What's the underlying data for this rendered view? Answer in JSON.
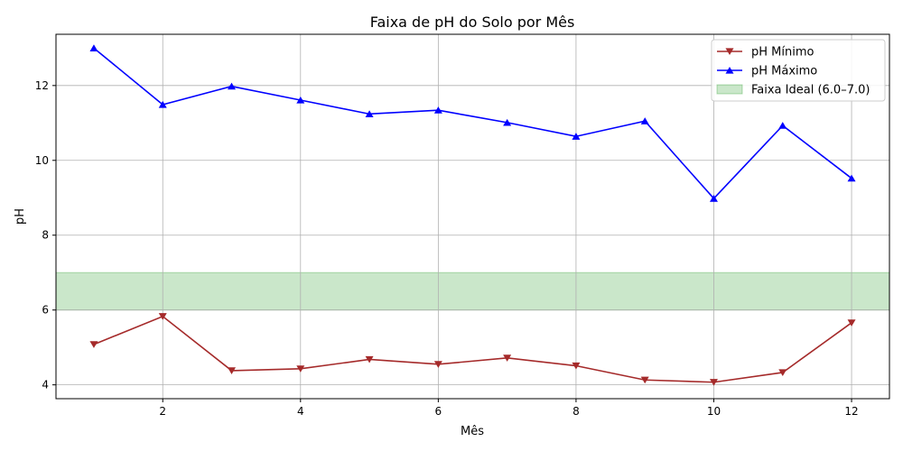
{
  "chart_data": {
    "type": "line",
    "title": "Faixa de pH do Solo por Mês",
    "xlabel": "Mês",
    "ylabel": "pH",
    "x": [
      1,
      2,
      3,
      4,
      5,
      6,
      7,
      8,
      9,
      10,
      11,
      12
    ],
    "xlim": [
      0.45,
      12.55
    ],
    "ylim": [
      3.63,
      13.37
    ],
    "xticks": [
      2,
      4,
      6,
      8,
      10,
      12
    ],
    "yticks": [
      4,
      6,
      8,
      10,
      12
    ],
    "grid": true,
    "legend_position": "top-right",
    "series": [
      {
        "name": "pH Mínimo",
        "color": "#a52a2a",
        "marker": "triangle-down",
        "values": [
          5.08,
          5.83,
          4.38,
          4.43,
          4.68,
          4.55,
          4.72,
          4.51,
          4.13,
          4.07,
          4.33,
          5.66
        ]
      },
      {
        "name": "pH Máximo",
        "color": "#0000ff",
        "marker": "triangle-up",
        "values": [
          13.0,
          11.49,
          11.98,
          11.61,
          11.24,
          11.34,
          11.01,
          10.64,
          11.05,
          8.98,
          10.93,
          9.52
        ]
      }
    ],
    "band": {
      "name": "Faixa Ideal (6.0–7.0)",
      "y_range": [
        6.0,
        7.0
      ],
      "fill": "#2ca02c",
      "opacity": 0.25
    }
  }
}
